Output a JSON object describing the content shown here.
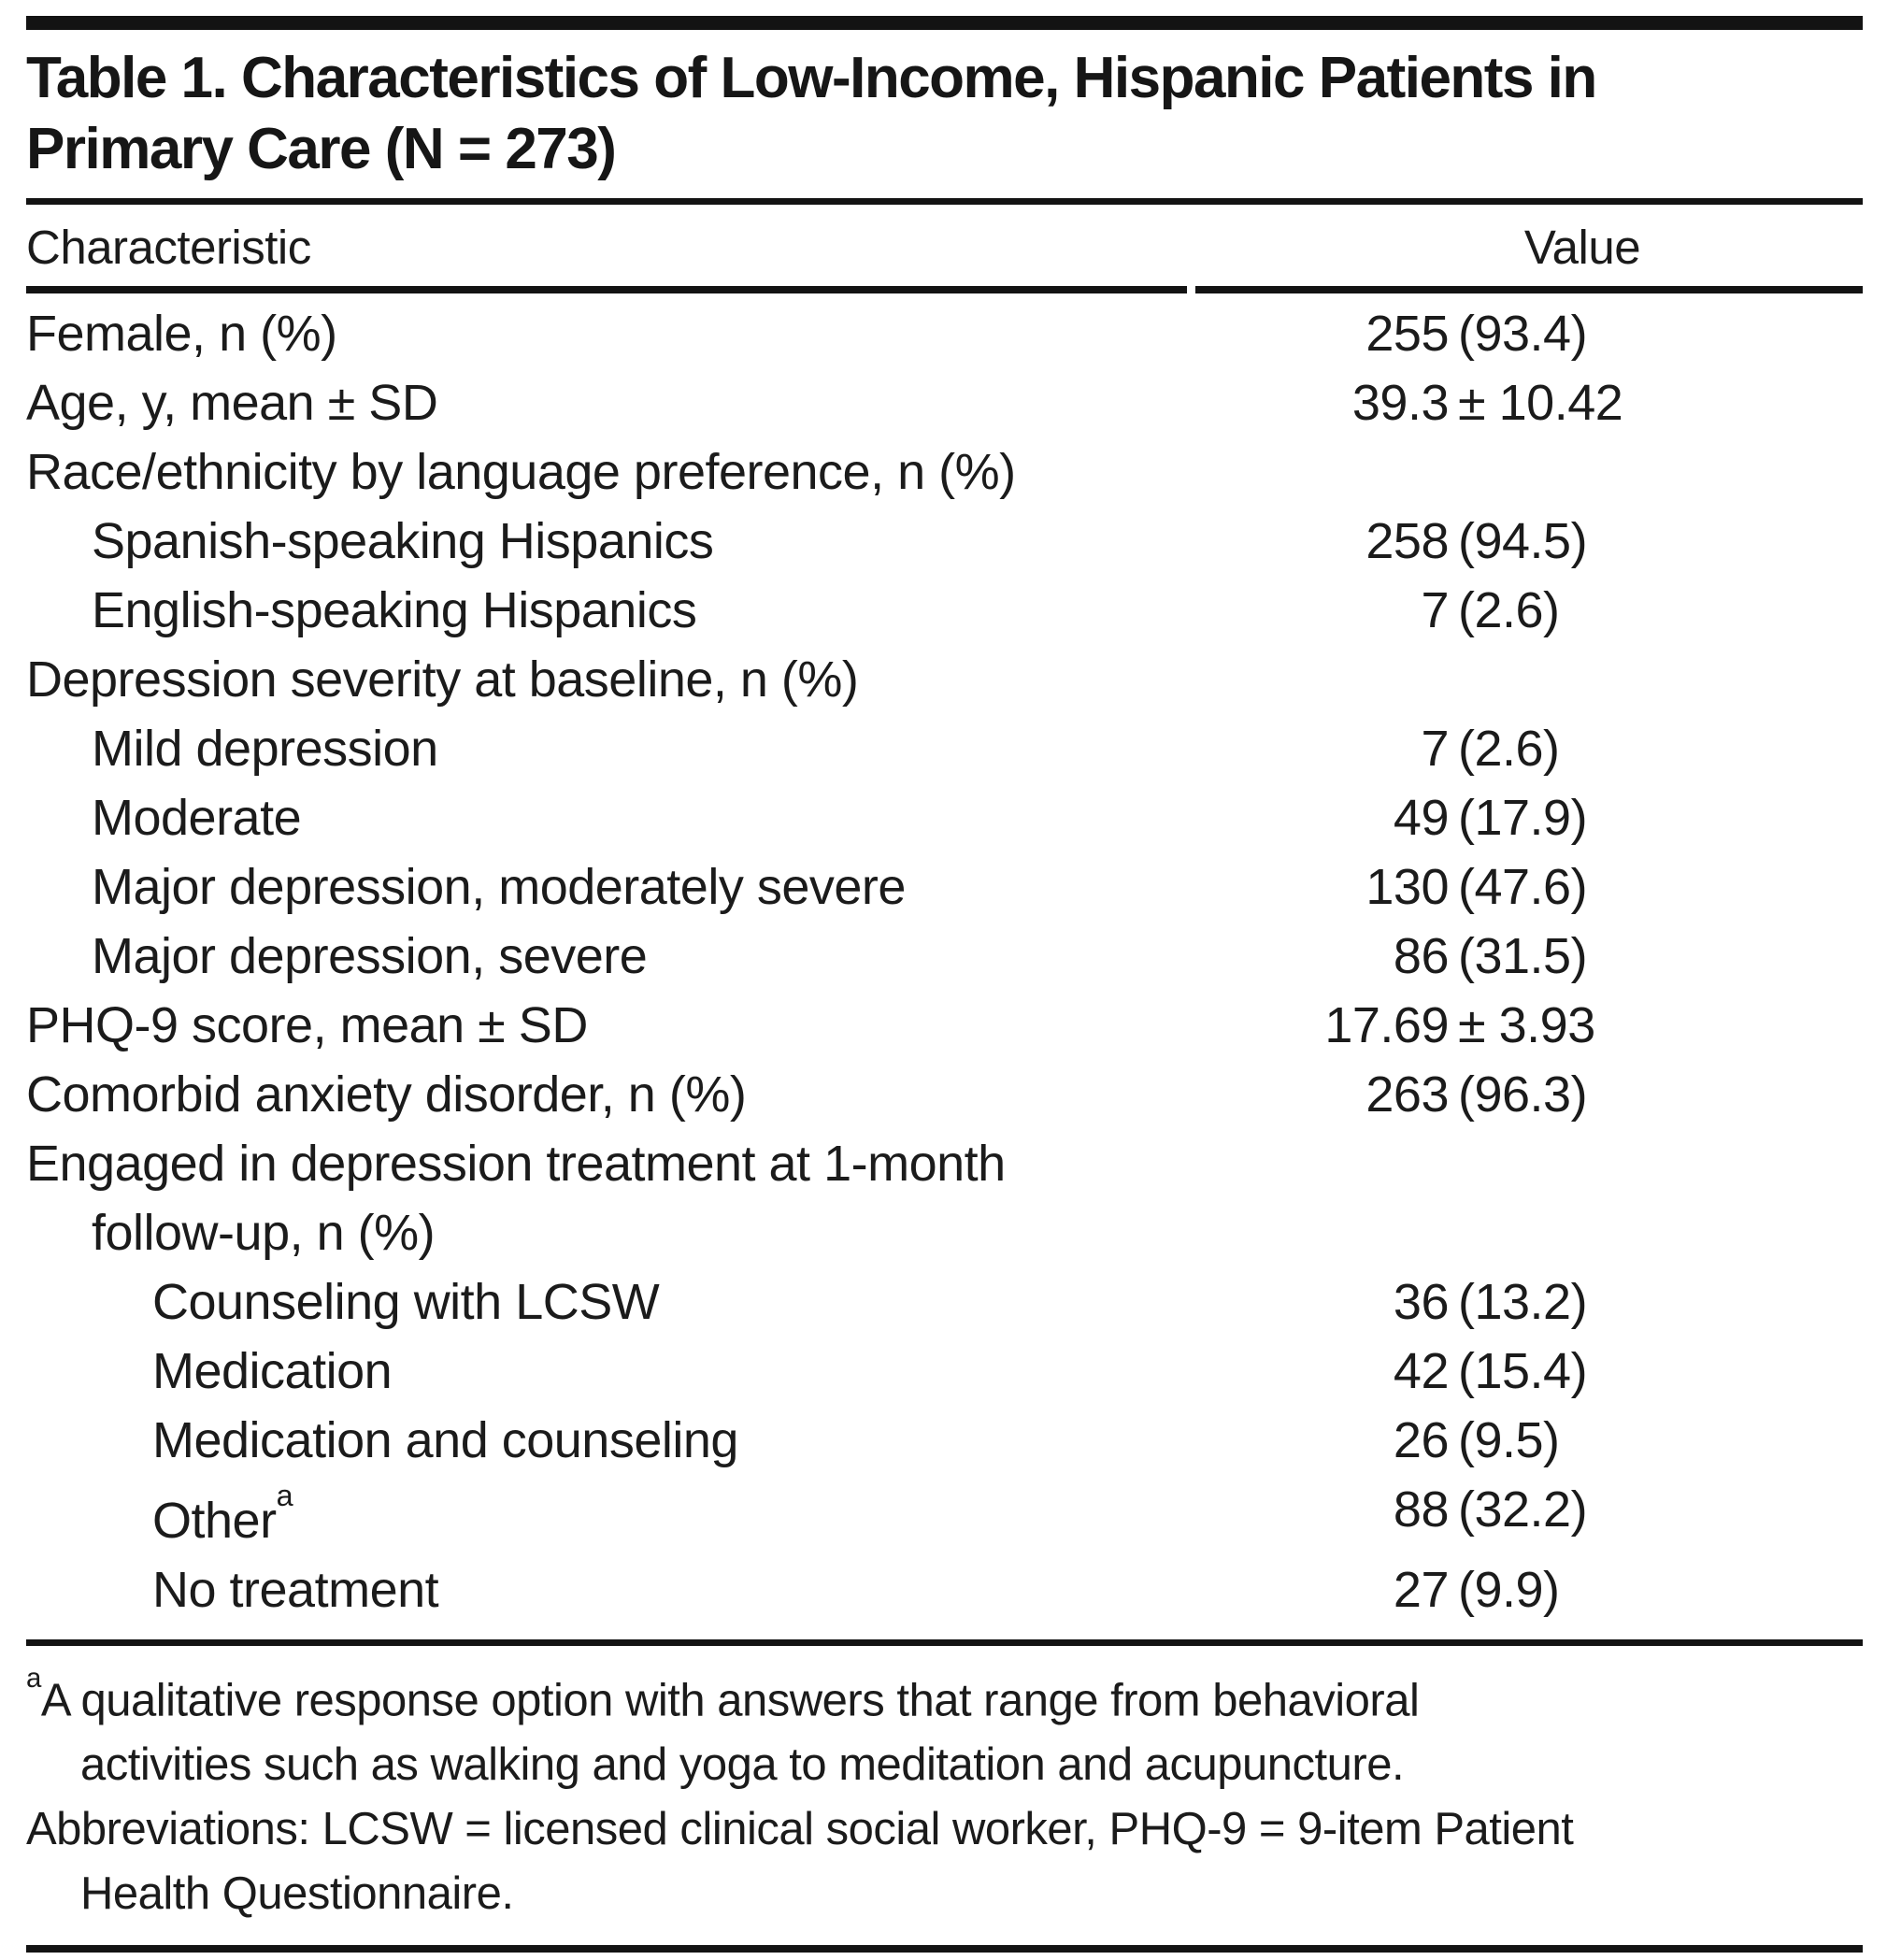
{
  "title": {
    "line1": "Table 1. Characteristics of Low-Income, Hispanic Patients in",
    "line2": "Primary Care (N = 273)"
  },
  "columns": {
    "characteristic": "Characteristic",
    "value": "Value"
  },
  "rows": [
    {
      "label": "Female, n (%)",
      "indent": 0,
      "v1": "255",
      "v2": "(93.4)"
    },
    {
      "label": "Age, y, mean ± SD",
      "indent": 0,
      "v1": "39.3",
      "v2": "± 10.42"
    },
    {
      "label": "Race/ethnicity by language preference, n (%)",
      "indent": 0,
      "v1": "",
      "v2": ""
    },
    {
      "label": "Spanish-speaking Hispanics",
      "indent": 1,
      "v1": "258",
      "v2": "(94.5)"
    },
    {
      "label": "English-speaking Hispanics",
      "indent": 1,
      "v1": "7",
      "v2": "(2.6)"
    },
    {
      "label": "Depression severity at baseline, n (%)",
      "indent": 0,
      "v1": "",
      "v2": ""
    },
    {
      "label": "Mild depression",
      "indent": 1,
      "v1": "7",
      "v2": "(2.6)"
    },
    {
      "label": "Moderate",
      "indent": 1,
      "v1": "49",
      "v2": "(17.9)"
    },
    {
      "label": "Major depression, moderately severe",
      "indent": 1,
      "v1": "130",
      "v2": "(47.6)"
    },
    {
      "label": "Major depression, severe",
      "indent": 1,
      "v1": "86",
      "v2": "(31.5)"
    },
    {
      "label": "PHQ-9 score, mean ± SD",
      "indent": 0,
      "v1": "17.69",
      "v2": "± 3.93"
    },
    {
      "label": "Comorbid anxiety disorder, n (%)",
      "indent": 0,
      "v1": "263",
      "v2": "(96.3)"
    },
    {
      "label": "Engaged in depression treatment at 1-month",
      "indent": 0,
      "v1": "",
      "v2": ""
    },
    {
      "label": "follow-up, n (%)",
      "indent": 1,
      "v1": "",
      "v2": ""
    },
    {
      "label": "Counseling with LCSW",
      "indent": 2,
      "v1": "36",
      "v2": "(13.2)"
    },
    {
      "label": "Medication",
      "indent": 2,
      "v1": "42",
      "v2": "(15.4)"
    },
    {
      "label": "Medication and counseling",
      "indent": 2,
      "v1": "26",
      "v2": "(9.5)"
    },
    {
      "label": "Other",
      "sup": "a",
      "indent": 2,
      "v1": "88",
      "v2": "(32.2)"
    },
    {
      "label": "No treatment",
      "indent": 2,
      "v1": "27",
      "v2": "(9.9)"
    }
  ],
  "footnotes": {
    "note_a": {
      "sup": "a",
      "line1": "A qualitative response option with answers that range from behavioral",
      "line2": "activities such as walking and yoga to meditation and acupuncture."
    },
    "abbrev": {
      "line1": "Abbreviations: LCSW = licensed clinical social worker, PHQ-9 = 9-item Patient",
      "line2": "Health Questionnaire."
    }
  },
  "colors": {
    "rule": "#131313",
    "text": "#1b1b1b",
    "background": "#ffffff"
  }
}
